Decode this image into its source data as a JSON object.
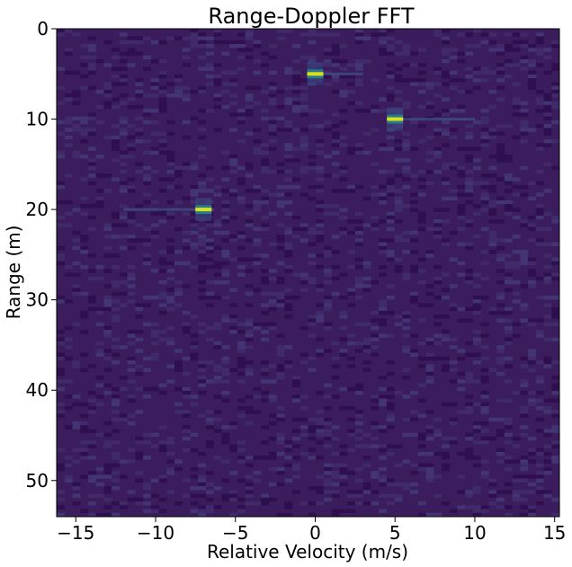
{
  "chart_data": {
    "type": "heatmap",
    "title": "Range-Doppler FFT",
    "xlabel": "Relative Velocity (m/s)",
    "ylabel": "Range (m)",
    "xlim": [
      -16.2,
      15.3
    ],
    "ylim": [
      54,
      0
    ],
    "x_ticks": [
      -15,
      -10,
      -5,
      0,
      5,
      10,
      15
    ],
    "y_ticks": [
      0,
      10,
      20,
      30,
      40,
      50
    ],
    "grid": false,
    "colormap": "viridis",
    "background_color": "#3b1c5c",
    "targets": [
      {
        "range": 5,
        "velocity": 0,
        "streak_to_velocity": 3,
        "intensity": 1.0
      },
      {
        "range": 10,
        "velocity": 5,
        "streak_to_velocity": 10,
        "intensity": 1.0
      },
      {
        "range": 20,
        "velocity": -7,
        "streak_to_velocity": -12,
        "intensity": 1.0
      }
    ]
  }
}
